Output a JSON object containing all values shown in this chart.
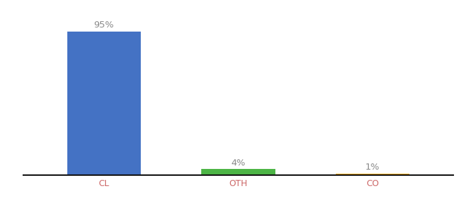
{
  "categories": [
    "CL",
    "OTH",
    "CO"
  ],
  "values": [
    95,
    4,
    1
  ],
  "bar_colors": [
    "#4472c4",
    "#4db546",
    "#f0a500"
  ],
  "value_labels": [
    "95%",
    "4%",
    "1%"
  ],
  "ylim": [
    0,
    105
  ],
  "background_color": "#ffffff",
  "label_fontsize": 9.5,
  "tick_fontsize": 9,
  "bar_width": 0.55,
  "label_color": "#888888",
  "tick_color": "#cc6666",
  "spine_color": "#111111"
}
